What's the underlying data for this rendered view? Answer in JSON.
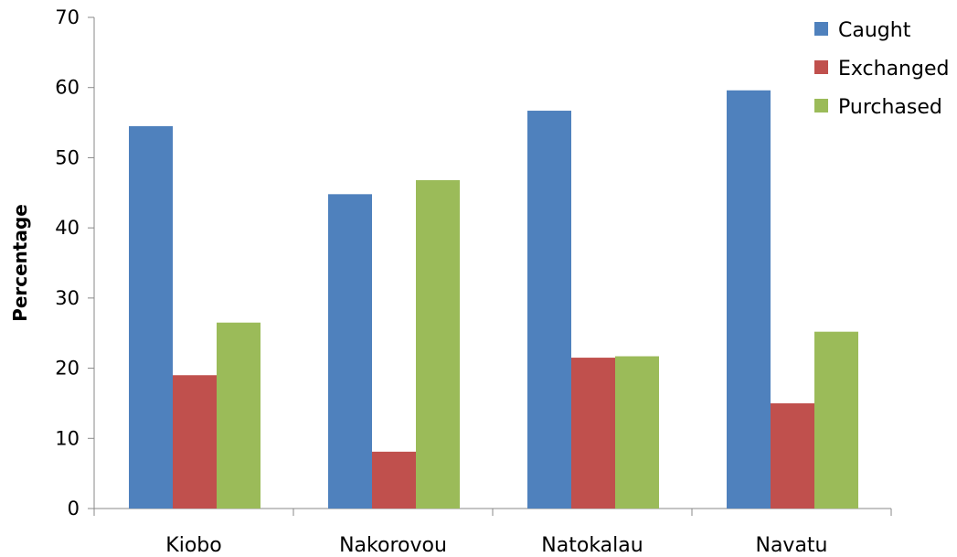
{
  "chart_data": {
    "type": "bar",
    "title": "",
    "xlabel": "",
    "ylabel": "Percentage",
    "ylim": [
      0,
      70
    ],
    "yticks": [
      0,
      10,
      20,
      30,
      40,
      50,
      60,
      70
    ],
    "categories": [
      "Kiobo",
      "Nakorovou",
      "Natokalau",
      "Navatu"
    ],
    "series": [
      {
        "name": "Caught",
        "color": "#4f81bd",
        "values": [
          54.5,
          44.8,
          56.7,
          59.6
        ]
      },
      {
        "name": "Exchanged",
        "color": "#c0504d",
        "values": [
          19.0,
          8.1,
          21.5,
          15.0
        ]
      },
      {
        "name": "Purchased",
        "color": "#9bbb59",
        "values": [
          26.5,
          46.8,
          21.7,
          25.2
        ]
      }
    ],
    "legend_position": "top-right",
    "grid": false
  }
}
